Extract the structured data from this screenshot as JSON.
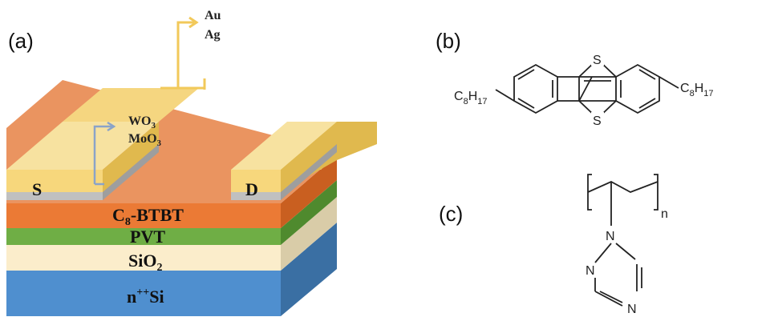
{
  "panels": {
    "a": "(a)",
    "b": "(b)",
    "c": "(c)"
  },
  "device": {
    "top_metals": [
      "Au",
      "Ag"
    ],
    "oxides": [
      {
        "base": "WO",
        "sub": "3"
      },
      {
        "base": "MoO",
        "sub": "3"
      }
    ],
    "source": "S",
    "drain": "D",
    "layers": {
      "semiconductor": {
        "base": "C",
        "sub": "8",
        "rest": "-BTBT"
      },
      "dielectric_polymer": "PVT",
      "oxide": {
        "base": "SiO",
        "sub": "2"
      },
      "substrate": {
        "pre": "n",
        "sup": "++",
        "post": "Si"
      }
    },
    "colors": {
      "electrode": "#f7d77c",
      "oxide_strip": "#c0c0c0",
      "semiconductor": "#eb7a35",
      "pvt": "#6fae45",
      "sio2": "#fbedcb",
      "si": "#4f8fcf",
      "arrow_metal": "#f2c95a",
      "arrow_oxide": "#8aa3c8"
    }
  },
  "molecule_b": {
    "substituent_left": {
      "base": "C",
      "sub1": "8",
      "mid": "H",
      "sub2": "17"
    },
    "substituent_right": {
      "base": "C",
      "sub1": "8",
      "mid": "H",
      "sub2": "17"
    },
    "heteroatom_top": "S",
    "heteroatom_bottom": "S"
  },
  "molecule_c": {
    "repeat_subscript": "n",
    "atom_n1": "N",
    "atom_n2": "N",
    "atom_n4": "N"
  }
}
